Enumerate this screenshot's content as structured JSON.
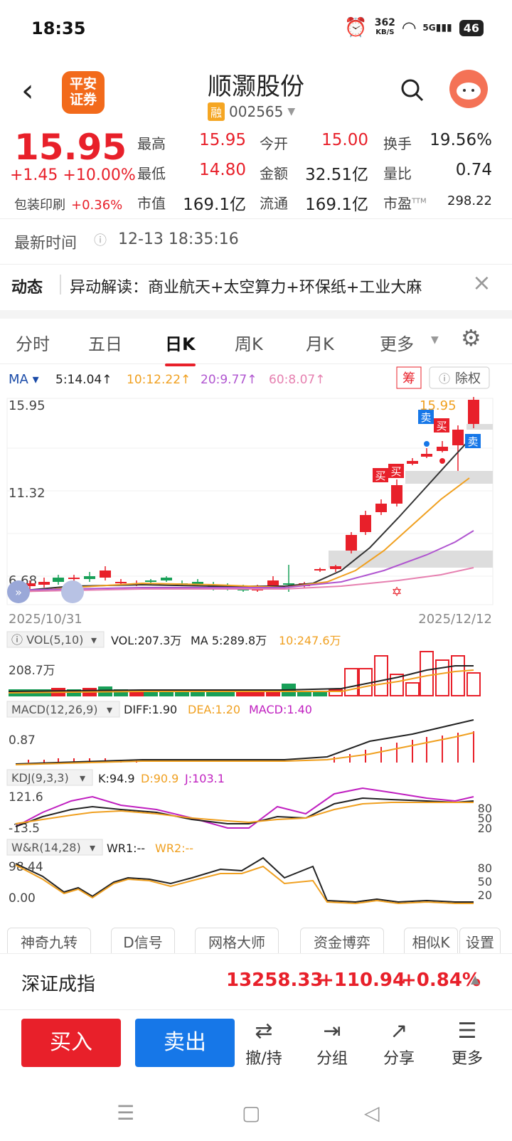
{
  "status": {
    "time": "18:35",
    "speed": "362",
    "speed_unit": "KB/S",
    "network": "5G",
    "battery": "46"
  },
  "header": {
    "logo_line1": "平安",
    "logo_line2": "证券",
    "name": "顺灏股份",
    "margin_tag": "融",
    "code": "002565"
  },
  "quote": {
    "price": "15.95",
    "change": "+1.45",
    "pct": "+10.00%",
    "sector_name": "包装印刷",
    "sector_pct": "+0.36%",
    "rows": [
      [
        {
          "label": "最高",
          "value": "15.95",
          "color": "red"
        },
        {
          "label": "今开",
          "value": "15.00",
          "color": "red"
        },
        {
          "label": "换手",
          "value": "19.56%",
          "color": "black"
        }
      ],
      [
        {
          "label": "最低",
          "value": "14.80",
          "color": "red"
        },
        {
          "label": "金额",
          "value": "32.51亿",
          "color": "black"
        },
        {
          "label": "量比",
          "value": "0.74",
          "color": "black"
        }
      ],
      [
        {
          "label": "市值",
          "value": "169.1亿",
          "color": "black"
        },
        {
          "label": "流通",
          "value": "169.1亿",
          "color": "black"
        },
        {
          "label": "市盈",
          "sup": "TTM",
          "value": "298.22",
          "color": "black"
        }
      ]
    ]
  },
  "time_row": {
    "label": "最新时间",
    "value": "12-13 18:35:16"
  },
  "news": {
    "tag": "动态",
    "text": "异动解读：商业航天+太空算力+环保纸+工业大麻"
  },
  "tabs": [
    "分时",
    "五日",
    "日K",
    "周K",
    "月K",
    "更多"
  ],
  "active_tab": 2,
  "ma": {
    "label": "MA",
    "items": [
      {
        "text": "5:14.04↑",
        "color": "#222222"
      },
      {
        "text": "10:12.22↑",
        "color": "#f0a020"
      },
      {
        "text": "20:9.77↑",
        "color": "#b055d0"
      },
      {
        "text": "60:8.07↑",
        "color": "#e680b0"
      }
    ],
    "chip": "筹",
    "rights": "除权"
  },
  "kline": {
    "y_high": "15.95",
    "y_mid": "11.32",
    "y_low": "6.68",
    "date_start": "2025/10/31",
    "date_end": "2025/12/12",
    "last_label": "15.95",
    "buy_tag": "买",
    "sell_tag": "卖"
  },
  "vol": {
    "selector": "VOL(5,10)",
    "text": "VOL:207.3万",
    "ma5": "MA 5:289.8万",
    "ma10": "10:247.6万",
    "y": "208.7万"
  },
  "macd": {
    "selector": "MACD(12,26,9)",
    "diff": "DIFF:1.90",
    "dea": "DEA:1.20",
    "macd": "MACD:1.40",
    "y": "0.87"
  },
  "kdj": {
    "selector": "KDJ(9,3,3)",
    "k": "K:94.9",
    "d": "D:90.9",
    "j": "J:103.1",
    "y_top": "121.6",
    "y_bot": "-13.5",
    "levels": [
      "80",
      "50",
      "20"
    ]
  },
  "wr": {
    "selector": "W&R(14,28)",
    "wr1": "WR1:--",
    "wr2": "WR2:--",
    "y_top": "98.44",
    "y_bot": "0.00",
    "levels": [
      "80",
      "50",
      "20"
    ]
  },
  "tools": [
    "神奇九转",
    "D信号",
    "网格大师",
    "资金博弈",
    "相似K",
    "设置"
  ],
  "index": {
    "name": "深证成指",
    "value": "13258.33",
    "change": "+110.94",
    "pct": "+0.84%"
  },
  "actions": {
    "buy": "买入",
    "sell": "卖出",
    "items": [
      {
        "icon": "⇄",
        "label": "撤/持"
      },
      {
        "icon": "⇥",
        "label": "分组"
      },
      {
        "icon": "↗",
        "label": "分享"
      },
      {
        "icon": "☰",
        "label": "更多"
      }
    ]
  },
  "colors": {
    "up": "#e8202a",
    "down": "#18a058",
    "accent": "#1677e8"
  }
}
